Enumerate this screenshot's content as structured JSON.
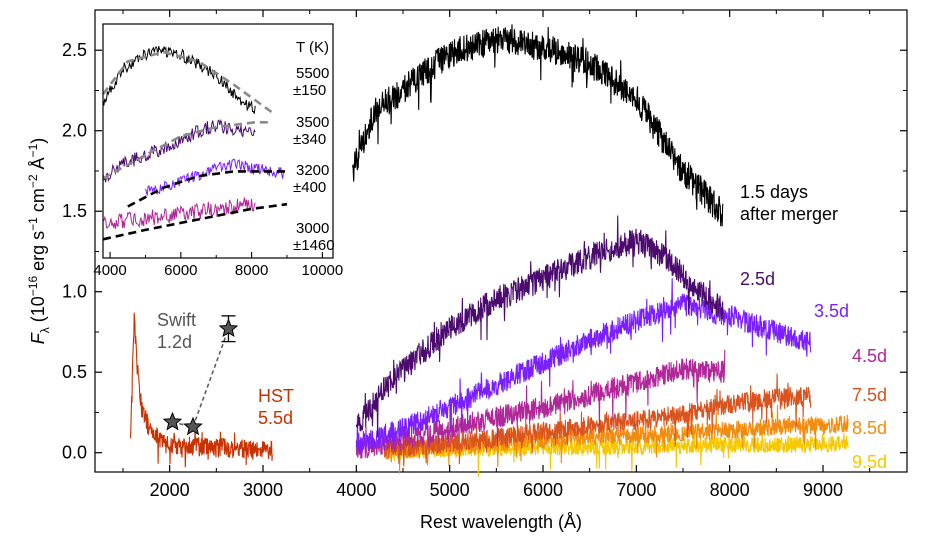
{
  "chart_data": {
    "type": "line",
    "xlabel": "Rest wavelength (Å)",
    "ylabel_parts": {
      "f": "F",
      "lambda": "λ",
      "open": " (10",
      "exp16": "−16",
      "unit1": " erg s",
      "exp1": "−1",
      "unit2": " cm",
      "exp2": "−2",
      "unit3": " Å",
      "exp3": "−1",
      "close": ")"
    },
    "xlim": [
      1200,
      9900
    ],
    "ylim": [
      -0.12,
      2.75
    ],
    "xticks": [
      2000,
      3000,
      4000,
      5000,
      6000,
      7000,
      8000,
      9000
    ],
    "yticks": [
      0.0,
      0.5,
      1.0,
      1.5,
      2.0,
      2.5
    ],
    "ytick_labels": [
      "0.0",
      "0.5",
      "1.0",
      "1.5",
      "2.0",
      "2.5"
    ],
    "series": [
      {
        "label": "1.5 days\nafter merger",
        "color": "#000000",
        "x_range": [
          3960,
          7930
        ],
        "anchors": [
          [
            3960,
            1.75
          ],
          [
            4200,
            2.12
          ],
          [
            4600,
            2.3
          ],
          [
            5000,
            2.48
          ],
          [
            5500,
            2.56
          ],
          [
            6000,
            2.52
          ],
          [
            6500,
            2.42
          ],
          [
            7000,
            2.2
          ],
          [
            7500,
            1.75
          ],
          [
            7930,
            1.48
          ]
        ]
      },
      {
        "label": "2.5d",
        "color": "#4a0a6e",
        "x_range": [
          4000,
          7930
        ],
        "anchors": [
          [
            4000,
            0.15
          ],
          [
            4300,
            0.4
          ],
          [
            4700,
            0.62
          ],
          [
            5000,
            0.78
          ],
          [
            5500,
            0.95
          ],
          [
            6000,
            1.08
          ],
          [
            6500,
            1.22
          ],
          [
            7000,
            1.32
          ],
          [
            7300,
            1.22
          ],
          [
            7600,
            1.05
          ],
          [
            7930,
            0.88
          ]
        ]
      },
      {
        "label": "3.5d",
        "color": "#7b1fff",
        "x_range": [
          4000,
          8870
        ],
        "anchors": [
          [
            4000,
            0.05
          ],
          [
            4500,
            0.15
          ],
          [
            5000,
            0.28
          ],
          [
            5500,
            0.42
          ],
          [
            6000,
            0.56
          ],
          [
            6500,
            0.7
          ],
          [
            7000,
            0.82
          ],
          [
            7500,
            0.92
          ],
          [
            8000,
            0.85
          ],
          [
            8500,
            0.75
          ],
          [
            8870,
            0.68
          ]
        ]
      },
      {
        "label": "4.5d",
        "color": "#b0279a",
        "x_range": [
          4000,
          7950
        ],
        "anchors": [
          [
            4000,
            0.02
          ],
          [
            4500,
            0.08
          ],
          [
            5000,
            0.15
          ],
          [
            5500,
            0.22
          ],
          [
            6000,
            0.28
          ],
          [
            6500,
            0.36
          ],
          [
            7000,
            0.44
          ],
          [
            7500,
            0.52
          ],
          [
            7950,
            0.5
          ]
        ]
      },
      {
        "label": "7.5d",
        "color": "#d9531e",
        "x_range": [
          4300,
          8870
        ],
        "anchors": [
          [
            4300,
            0.02
          ],
          [
            5000,
            0.06
          ],
          [
            5500,
            0.09
          ],
          [
            6000,
            0.13
          ],
          [
            6500,
            0.17
          ],
          [
            7000,
            0.2
          ],
          [
            7500,
            0.24
          ],
          [
            8000,
            0.3
          ],
          [
            8500,
            0.34
          ],
          [
            8870,
            0.36
          ]
        ]
      },
      {
        "label": "8.5d",
        "color": "#f28c0f",
        "x_range": [
          4300,
          9270
        ],
        "anchors": [
          [
            4300,
            0.01
          ],
          [
            5000,
            0.04
          ],
          [
            5500,
            0.06
          ],
          [
            6000,
            0.08
          ],
          [
            6500,
            0.1
          ],
          [
            7000,
            0.11
          ],
          [
            7500,
            0.12
          ],
          [
            8000,
            0.14
          ],
          [
            8500,
            0.16
          ],
          [
            9000,
            0.17
          ],
          [
            9270,
            0.18
          ]
        ]
      },
      {
        "label": "9.5d",
        "color": "#f5c800",
        "x_range": [
          4300,
          9270
        ],
        "anchors": [
          [
            4300,
            0.0
          ],
          [
            5000,
            0.02
          ],
          [
            6000,
            0.03
          ],
          [
            7000,
            0.04
          ],
          [
            8000,
            0.05
          ],
          [
            9000,
            0.05
          ],
          [
            9270,
            0.06
          ]
        ]
      },
      {
        "label": "HST\n5.5d",
        "color": "#c73200",
        "x_range": [
          1580,
          3100
        ],
        "anchors": [
          [
            1580,
            0.05
          ],
          [
            1620,
            0.85
          ],
          [
            1650,
            0.55
          ],
          [
            1700,
            0.28
          ],
          [
            1800,
            0.12
          ],
          [
            2000,
            0.05
          ],
          [
            2500,
            0.03
          ],
          [
            3100,
            0.02
          ]
        ]
      }
    ],
    "swift": {
      "label": "Swift\n1.2d",
      "color": "#555555",
      "points": [
        {
          "x": 2030,
          "y": 0.19
        },
        {
          "x": 2250,
          "y": 0.16
        },
        {
          "x": 2630,
          "y": 0.77,
          "yerr": 0.08
        }
      ]
    },
    "inset": {
      "xlim": [
        3800,
        10300
      ],
      "xticks": [
        4000,
        6000,
        8000,
        10000
      ],
      "temperature_header": "T (K)",
      "temperatures": [
        {
          "value": "5500",
          "err": "±150"
        },
        {
          "value": "3500",
          "err": "±340"
        },
        {
          "value": "3200",
          "err": "±400"
        },
        {
          "value": "3000",
          "err": "±1460"
        }
      ]
    }
  }
}
